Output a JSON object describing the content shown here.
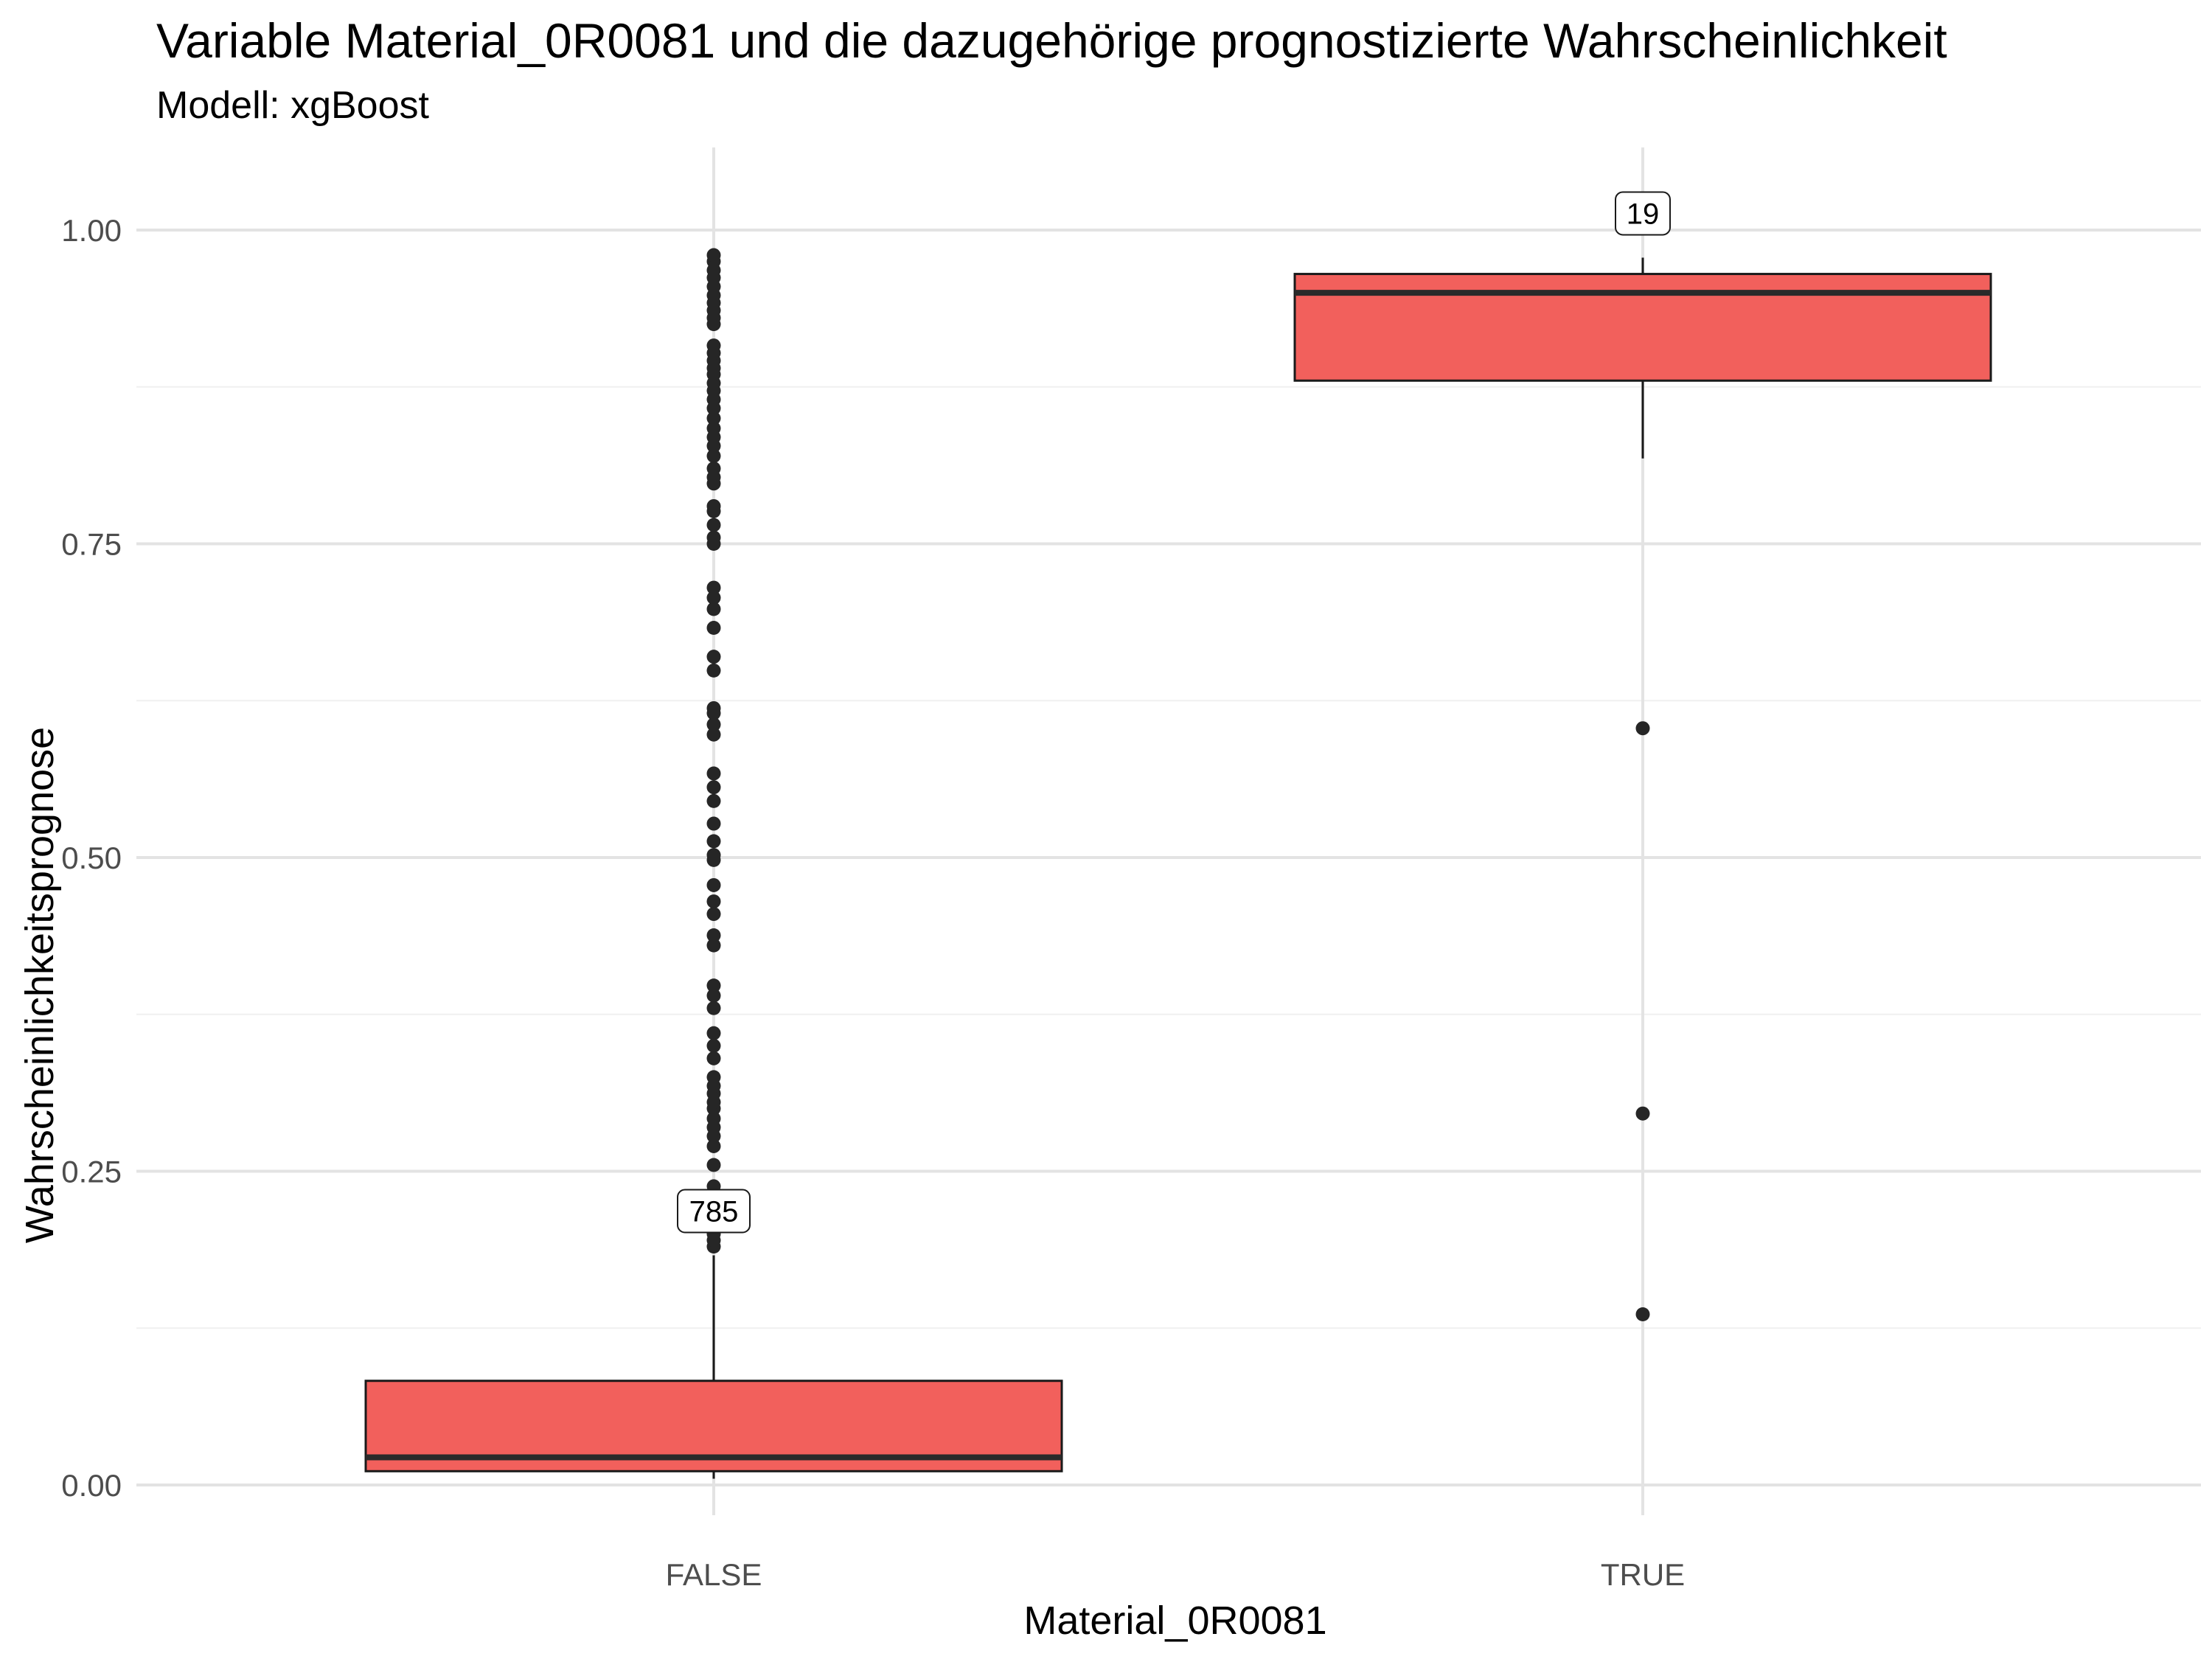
{
  "chart_data": {
    "type": "boxplot",
    "title": "Variable Material_0R0081 und die dazugehörige prognostizierte Wahrscheinlichkeit",
    "subtitle": "Modell: xgBoost",
    "xlabel": "Material_0R0081",
    "ylabel": "Wahrscheinlichkeitsprognose",
    "ylim": [
      -0.03,
      1.065
    ],
    "yticks": [
      0.0,
      0.25,
      0.5,
      0.75,
      1.0
    ],
    "ytick_labels": [
      "0.00",
      "0.25",
      "0.50",
      "0.75",
      "1.00"
    ],
    "categories": [
      "FALSE",
      "TRUE"
    ],
    "grid": true,
    "legend": "none",
    "colors": {
      "box_fill": "#F2605C",
      "box_stroke": "#1a1a1a",
      "grid_major": "#e3e3e3",
      "grid_minor": "#f0f0f0"
    },
    "boxes": [
      {
        "category": "FALSE",
        "count": "785",
        "lower_whisker": 0.005,
        "q1": 0.011,
        "median": 0.022,
        "q3": 0.083,
        "upper_whisker": 0.183,
        "outliers": [
          0.19,
          0.195,
          0.2,
          0.205,
          0.21,
          0.218,
          0.23,
          0.238,
          0.255,
          0.27,
          0.278,
          0.285,
          0.292,
          0.3,
          0.305,
          0.312,
          0.318,
          0.325,
          0.34,
          0.35,
          0.36,
          0.38,
          0.39,
          0.398,
          0.43,
          0.438,
          0.455,
          0.465,
          0.478,
          0.498,
          0.502,
          0.513,
          0.527,
          0.545,
          0.556,
          0.567,
          0.598,
          0.606,
          0.615,
          0.619,
          0.649,
          0.66,
          0.683,
          0.698,
          0.707,
          0.715,
          0.75,
          0.755,
          0.765,
          0.776,
          0.78,
          0.798,
          0.803,
          0.81,
          0.82,
          0.828,
          0.835,
          0.842,
          0.85,
          0.858,
          0.865,
          0.872,
          0.878,
          0.885,
          0.89,
          0.896,
          0.902,
          0.908,
          0.925,
          0.93,
          0.936,
          0.942,
          0.948,
          0.955,
          0.962,
          0.968,
          0.975,
          0.98
        ]
      },
      {
        "category": "TRUE",
        "count": "19",
        "lower_whisker": 0.818,
        "q1": 0.88,
        "median": 0.95,
        "q3": 0.965,
        "upper_whisker": 0.978,
        "outliers": [
          0.603,
          0.296,
          0.136
        ]
      }
    ]
  }
}
